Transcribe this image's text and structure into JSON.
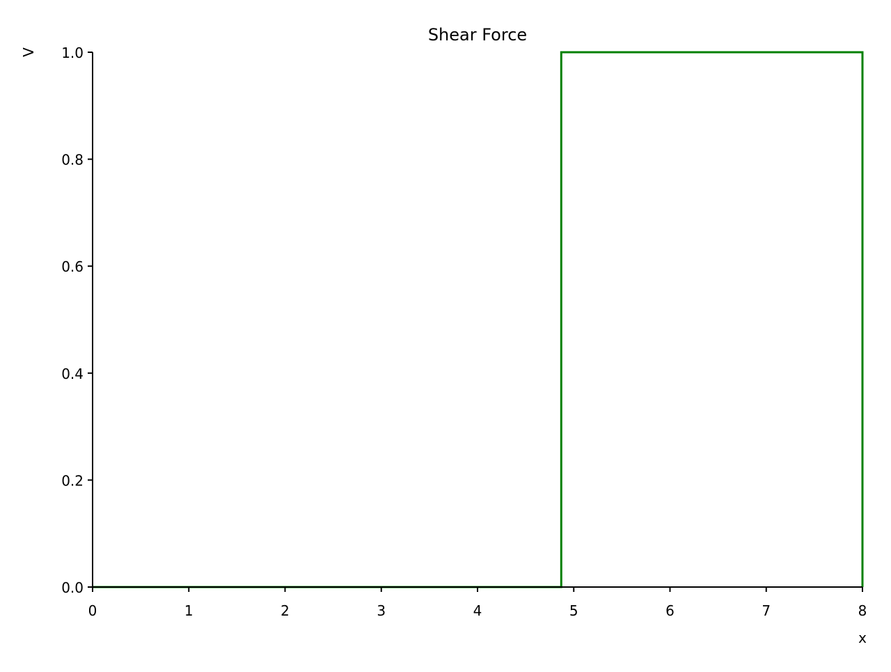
{
  "chart_data": {
    "type": "line",
    "title": "Shear Force",
    "xlabel": "x",
    "ylabel": "V",
    "xlim": [
      0,
      8
    ],
    "ylim": [
      0,
      1.0
    ],
    "xticks": [
      0,
      1,
      2,
      3,
      4,
      5,
      6,
      7,
      8
    ],
    "xtick_labels": [
      "0",
      "1",
      "2",
      "3",
      "4",
      "5",
      "6",
      "7",
      "8"
    ],
    "yticks": [
      0.0,
      0.2,
      0.4,
      0.6,
      0.8,
      1.0
    ],
    "ytick_labels": [
      "0.0",
      "0.2",
      "0.4",
      "0.6",
      "0.8",
      "1.0"
    ],
    "grid": false,
    "series": [
      {
        "color": "#008000",
        "x": [
          0,
          4.87,
          4.87,
          8,
          8
        ],
        "y": [
          0,
          0,
          1.0,
          1.0,
          0
        ]
      }
    ]
  }
}
